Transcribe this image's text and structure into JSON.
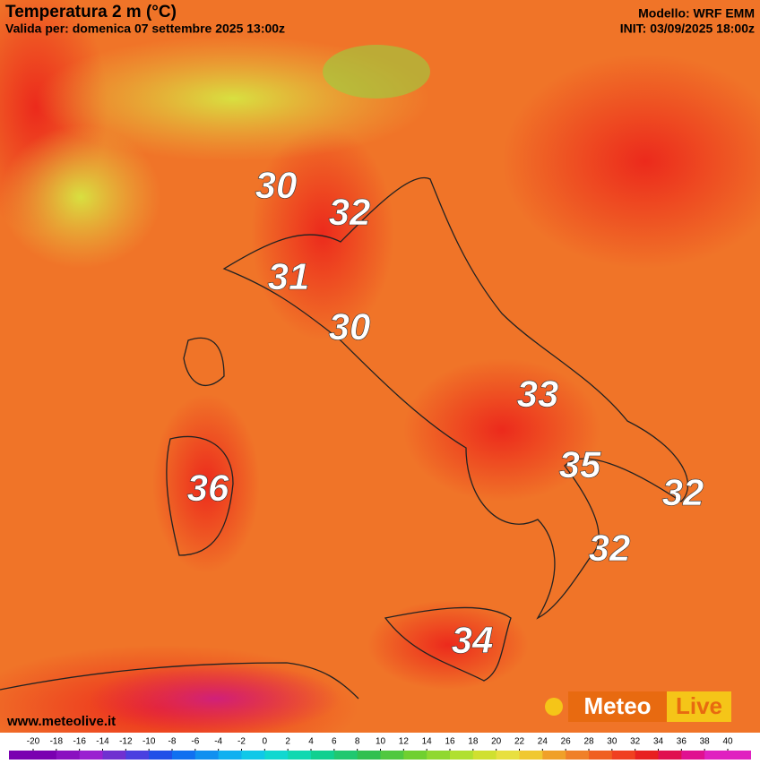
{
  "header": {
    "title": "Temperatura 2 m (°C)",
    "subtitle": "Valida per: domenica 07 settembre 2025 13:00z",
    "model": "Modello: WRF EMM",
    "init": "INIT: 03/09/2025 18:00z"
  },
  "labels": [
    "30",
    "32",
    "31",
    "30",
    "33",
    "35",
    "32",
    "32",
    "36",
    "34"
  ],
  "footer": {
    "website": "www.meteolive.it",
    "logo_left": "Meteo",
    "logo_right": "Live"
  },
  "colorbar": {
    "ticks": [
      -20,
      -18,
      -16,
      -14,
      -12,
      -10,
      -8,
      -6,
      -4,
      -2,
      0,
      2,
      4,
      6,
      8,
      10,
      12,
      14,
      16,
      18,
      20,
      22,
      24,
      26,
      28,
      30,
      32,
      34,
      36,
      38,
      40
    ],
    "colors": [
      "#7a00b0",
      "#8a10c0",
      "#9a20d0",
      "#7030d0",
      "#4a40e0",
      "#2050e8",
      "#1070f0",
      "#1090f0",
      "#10b0f0",
      "#10c8e8",
      "#10d8d0",
      "#10d8b0",
      "#10d090",
      "#20c870",
      "#30c050",
      "#50c840",
      "#70d030",
      "#90d830",
      "#b0e030",
      "#d0e030",
      "#e8e040",
      "#f0c830",
      "#f0a028",
      "#f08028",
      "#f06020",
      "#f04020",
      "#e82020",
      "#e01050",
      "#e01090",
      "#e020c0"
    ]
  }
}
